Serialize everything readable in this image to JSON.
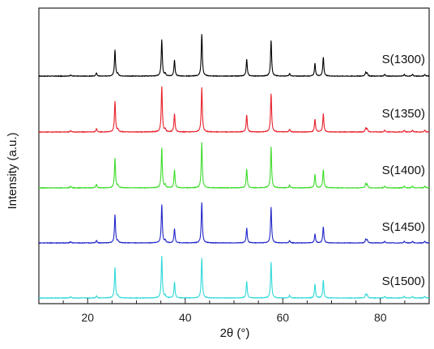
{
  "chart_data": {
    "type": "line",
    "xlabel": "2θ (°)",
    "ylabel": "Intensity (a.u.)",
    "xlim": [
      10,
      90
    ],
    "xticks": [
      20,
      40,
      60,
      80
    ],
    "y_ticks_shown": false,
    "grid": false,
    "legend": "none",
    "stacked_offset": true,
    "peak_positions": [
      16.5,
      21.8,
      25.6,
      26.2,
      35.2,
      35.9,
      37.8,
      43.4,
      52.6,
      57.6,
      61.4,
      66.6,
      68.3,
      77.0,
      77.3,
      80.9,
      84.9,
      86.6,
      89.1
    ],
    "series": [
      {
        "name": "S(1300)",
        "color": "#000000",
        "peak_intensities": [
          0.03,
          0.08,
          0.62,
          0.05,
          0.86,
          0.06,
          0.38,
          1.0,
          0.4,
          0.85,
          0.06,
          0.3,
          0.45,
          0.09,
          0.07,
          0.04,
          0.04,
          0.04,
          0.04
        ]
      },
      {
        "name": "S(1350)",
        "color": "#e8202a",
        "peak_intensities": [
          0.03,
          0.07,
          0.68,
          0.05,
          1.0,
          0.06,
          0.4,
          0.98,
          0.38,
          0.85,
          0.06,
          0.28,
          0.4,
          0.09,
          0.07,
          0.04,
          0.04,
          0.04,
          0.04
        ]
      },
      {
        "name": "S(1400)",
        "color": "#3ddc2a",
        "peak_intensities": [
          0.03,
          0.08,
          0.65,
          0.05,
          0.88,
          0.06,
          0.4,
          1.0,
          0.42,
          0.9,
          0.06,
          0.3,
          0.4,
          0.09,
          0.07,
          0.04,
          0.04,
          0.04,
          0.04
        ]
      },
      {
        "name": "S(1450)",
        "color": "#2127c8",
        "peak_intensities": [
          0.03,
          0.06,
          0.7,
          0.05,
          0.95,
          0.06,
          0.35,
          1.0,
          0.37,
          0.88,
          0.06,
          0.22,
          0.4,
          0.09,
          0.07,
          0.04,
          0.04,
          0.04,
          0.04
        ]
      },
      {
        "name": "S(1500)",
        "color": "#30d8d8",
        "peak_intensities": [
          0.03,
          0.05,
          0.72,
          0.05,
          1.0,
          0.06,
          0.38,
          0.95,
          0.4,
          0.85,
          0.06,
          0.33,
          0.42,
          0.09,
          0.07,
          0.04,
          0.04,
          0.04,
          0.04
        ]
      }
    ]
  }
}
